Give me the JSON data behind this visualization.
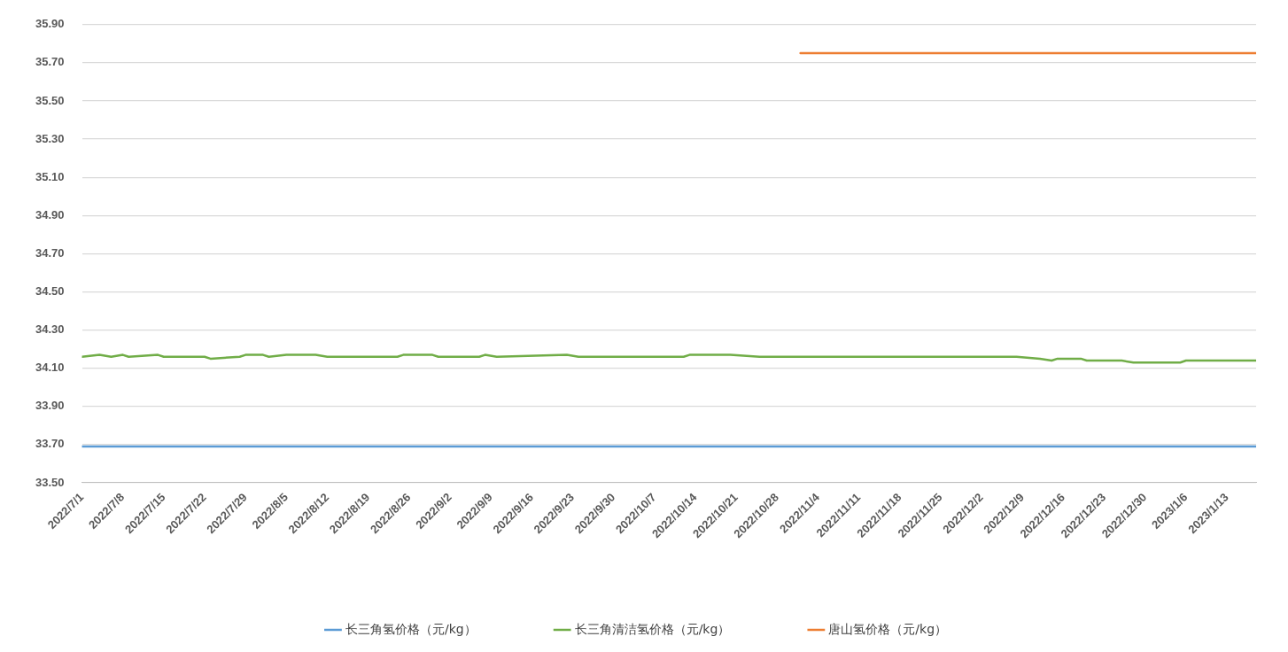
{
  "chart_data": {
    "type": "line",
    "xlim": [
      "2022-07-01",
      "2023-01-18"
    ],
    "xticks": [
      {
        "value": "2022-07-01",
        "label": "2022/7/1"
      },
      {
        "value": "2022-07-08",
        "label": "2022/7/8"
      },
      {
        "value": "2022-07-15",
        "label": "2022/7/15"
      },
      {
        "value": "2022-07-22",
        "label": "2022/7/22"
      },
      {
        "value": "2022-07-29",
        "label": "2022/7/29"
      },
      {
        "value": "2022-08-05",
        "label": "2022/8/5"
      },
      {
        "value": "2022-08-12",
        "label": "2022/8/12"
      },
      {
        "value": "2022-08-19",
        "label": "2022/8/19"
      },
      {
        "value": "2022-08-26",
        "label": "2022/8/26"
      },
      {
        "value": "2022-09-02",
        "label": "2022/9/2"
      },
      {
        "value": "2022-09-09",
        "label": "2022/9/9"
      },
      {
        "value": "2022-09-16",
        "label": "2022/9/16"
      },
      {
        "value": "2022-09-23",
        "label": "2022/9/23"
      },
      {
        "value": "2022-09-30",
        "label": "2022/9/30"
      },
      {
        "value": "2022-10-07",
        "label": "2022/10/7"
      },
      {
        "value": "2022-10-14",
        "label": "2022/10/14"
      },
      {
        "value": "2022-10-21",
        "label": "2022/10/21"
      },
      {
        "value": "2022-10-28",
        "label": "2022/10/28"
      },
      {
        "value": "2022-11-04",
        "label": "2022/11/4"
      },
      {
        "value": "2022-11-11",
        "label": "2022/11/11"
      },
      {
        "value": "2022-11-18",
        "label": "2022/11/18"
      },
      {
        "value": "2022-11-25",
        "label": "2022/11/25"
      },
      {
        "value": "2022-12-02",
        "label": "2022/12/2"
      },
      {
        "value": "2022-12-09",
        "label": "2022/12/9"
      },
      {
        "value": "2022-12-16",
        "label": "2022/12/16"
      },
      {
        "value": "2022-12-23",
        "label": "2022/12/23"
      },
      {
        "value": "2022-12-30",
        "label": "2022/12/30"
      },
      {
        "value": "2023-01-06",
        "label": "2023/1/6"
      },
      {
        "value": "2023-01-13",
        "label": "2023/1/13"
      }
    ],
    "ylim": [
      33.5,
      35.9
    ],
    "yticks": [
      {
        "value": 33.5,
        "label": "33.50"
      },
      {
        "value": 33.7,
        "label": "33.70"
      },
      {
        "value": 33.9,
        "label": "33.90"
      },
      {
        "value": 34.1,
        "label": "34.10"
      },
      {
        "value": 34.3,
        "label": "34.30"
      },
      {
        "value": 34.5,
        "label": "34.50"
      },
      {
        "value": 34.7,
        "label": "34.70"
      },
      {
        "value": 34.9,
        "label": "34.90"
      },
      {
        "value": 35.1,
        "label": "35.10"
      },
      {
        "value": 35.3,
        "label": "35.30"
      },
      {
        "value": 35.5,
        "label": "35.50"
      },
      {
        "value": 35.7,
        "label": "35.70"
      },
      {
        "value": 35.9,
        "label": "35.90"
      }
    ],
    "grid": "y",
    "legend": "bottom",
    "marker": "none",
    "line_style": "solid",
    "series": [
      {
        "name": "长三角氢价格（元/kg）",
        "color": "#5b9bd5",
        "x": [
          "2022-07-01",
          "2023-01-18"
        ],
        "values": [
          33.69,
          33.69
        ]
      },
      {
        "name": "长三角清洁氢价格（元/kg）",
        "color": "#70ad47",
        "x": [
          "2022-07-01",
          "2022-07-04",
          "2022-07-06",
          "2022-07-08",
          "2022-07-09",
          "2022-07-14",
          "2022-07-15",
          "2022-07-22",
          "2022-07-23",
          "2022-07-28",
          "2022-07-29",
          "2022-08-01",
          "2022-08-02",
          "2022-08-05",
          "2022-08-10",
          "2022-08-12",
          "2022-08-24",
          "2022-08-25",
          "2022-08-30",
          "2022-08-31",
          "2022-09-07",
          "2022-09-08",
          "2022-09-10",
          "2022-09-22",
          "2022-09-24",
          "2022-10-12",
          "2022-10-13",
          "2022-10-20",
          "2022-10-25",
          "2022-11-25",
          "2022-12-01",
          "2022-12-08",
          "2022-12-12",
          "2022-12-14",
          "2022-12-15",
          "2022-12-19",
          "2022-12-20",
          "2022-12-26",
          "2022-12-28",
          "2023-01-05",
          "2023-01-06",
          "2023-01-11",
          "2023-01-18"
        ],
        "values": [
          34.16,
          34.17,
          34.16,
          34.17,
          34.16,
          34.17,
          34.16,
          34.16,
          34.15,
          34.16,
          34.17,
          34.17,
          34.16,
          34.17,
          34.17,
          34.16,
          34.16,
          34.17,
          34.17,
          34.16,
          34.16,
          34.17,
          34.16,
          34.17,
          34.16,
          34.16,
          34.17,
          34.17,
          34.16,
          34.16,
          34.16,
          34.16,
          34.15,
          34.14,
          34.15,
          34.15,
          34.14,
          34.14,
          34.13,
          34.13,
          34.14,
          34.14,
          34.14
        ]
      },
      {
        "name": "唐山氢价格（元/kg）",
        "color": "#ed7d31",
        "x": [
          "2022-11-01",
          "2023-01-18"
        ],
        "values": [
          35.75,
          35.75
        ]
      }
    ]
  }
}
